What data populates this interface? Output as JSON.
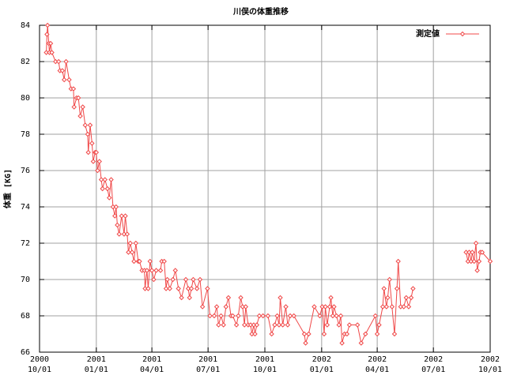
{
  "chart_data": {
    "type": "line",
    "title": "川俣の体重推移",
    "y_label": "体重 [KG]",
    "xlim": [
      "2000-10-01",
      "2002-10-01"
    ],
    "xticks": [
      {
        "value": "2000-10-01",
        "label": [
          "2000",
          "10/01"
        ]
      },
      {
        "value": "2001-01-01",
        "label": [
          "2001",
          "01/01"
        ]
      },
      {
        "value": "2001-04-01",
        "label": [
          "2001",
          "04/01"
        ]
      },
      {
        "value": "2001-07-01",
        "label": [
          "2001",
          "07/01"
        ]
      },
      {
        "value": "2001-10-01",
        "label": [
          "2001",
          "10/01"
        ]
      },
      {
        "value": "2002-01-01",
        "label": [
          "2002",
          "01/01"
        ]
      },
      {
        "value": "2002-04-01",
        "label": [
          "2002",
          "04/01"
        ]
      },
      {
        "value": "2002-07-01",
        "label": [
          "2002",
          "07/01"
        ]
      },
      {
        "value": "2002-10-01",
        "label": [
          "2002",
          "10/01"
        ]
      }
    ],
    "ylim": [
      66,
      84
    ],
    "yticks": [
      66,
      68,
      70,
      72,
      74,
      76,
      78,
      80,
      82,
      84
    ],
    "grid": true,
    "legend": "top-right",
    "x": [
      "2000-10-12",
      "2000-10-13",
      "2000-10-14",
      "2000-10-16",
      "2000-10-17",
      "2000-10-19",
      "2000-10-21",
      "2000-10-27",
      "2000-11-01",
      "2000-11-03",
      "2000-11-07",
      "2000-11-10",
      "2000-11-13",
      "2000-11-18",
      "2000-11-21",
      "2000-11-25",
      "2000-11-26",
      "2000-11-30",
      "2000-12-03",
      "2000-12-06",
      "2000-12-10",
      "2000-12-14",
      "2000-12-18",
      "2000-12-19",
      "2000-12-22",
      "2000-12-25",
      "2000-12-27",
      "2000-12-30",
      "2001-01-01",
      "2001-01-03",
      "2001-01-06",
      "2001-01-09",
      "2001-01-11",
      "2001-01-15",
      "2001-01-19",
      "2001-01-22",
      "2001-01-25",
      "2001-01-28",
      "2001-01-31",
      "2001-02-02",
      "2001-02-04",
      "2001-02-07",
      "2001-02-11",
      "2001-02-15",
      "2001-02-17",
      "2001-02-20",
      "2001-02-22",
      "2001-02-25",
      "2001-02-28",
      "2001-03-03",
      "2001-03-06",
      "2001-03-10",
      "2001-03-12",
      "2001-03-16",
      "2001-03-20",
      "2001-03-21",
      "2001-03-24",
      "2001-03-26",
      "2001-03-29",
      "2001-04-01",
      "2001-04-04",
      "2001-04-08",
      "2001-04-15",
      "2001-04-17",
      "2001-04-21",
      "2001-04-24",
      "2001-04-26",
      "2001-04-30",
      "2001-05-05",
      "2001-05-09",
      "2001-05-14",
      "2001-05-19",
      "2001-05-26",
      "2001-05-30",
      "2001-06-01",
      "2001-06-04",
      "2001-06-07",
      "2001-06-13",
      "2001-06-18",
      "2001-06-22",
      "2001-06-30",
      "2001-07-04",
      "2001-07-11",
      "2001-07-15",
      "2001-07-18",
      "2001-07-22",
      "2001-07-26",
      "2001-07-30",
      "2001-08-03",
      "2001-08-07",
      "2001-08-10",
      "2001-08-16",
      "2001-08-19",
      "2001-08-23",
      "2001-08-26",
      "2001-08-29",
      "2001-08-31",
      "2001-09-04",
      "2001-09-08",
      "2001-09-10",
      "2001-09-13",
      "2001-09-15",
      "2001-09-18",
      "2001-09-22",
      "2001-09-28",
      "2001-10-06",
      "2001-10-12",
      "2001-10-17",
      "2001-10-21",
      "2001-10-24",
      "2001-10-26",
      "2001-10-30",
      "2001-11-04",
      "2001-11-07",
      "2001-11-11",
      "2001-11-17",
      "2001-12-04",
      "2001-12-06",
      "2001-12-11",
      "2001-12-20",
      "2001-12-29",
      "2002-01-02",
      "2002-01-05",
      "2002-01-07",
      "2002-01-10",
      "2002-01-14",
      "2002-01-16",
      "2002-01-19",
      "2002-01-21",
      "2002-01-25",
      "2002-01-29",
      "2002-02-01",
      "2002-02-03",
      "2002-02-07",
      "2002-02-11",
      "2002-02-15",
      "2002-02-28",
      "2002-03-06",
      "2002-03-13",
      "2002-03-29",
      "2002-04-01",
      "2002-04-04",
      "2002-04-10",
      "2002-04-12",
      "2002-04-16",
      "2002-04-18",
      "2002-04-21",
      "2002-04-25",
      "2002-04-29",
      "2002-05-03",
      "2002-05-05",
      "2002-05-09",
      "2002-05-14",
      "2002-05-18",
      "2002-05-22",
      "2002-05-26",
      "2002-05-29",
      "2002-07-15",
      "2002-08-23",
      "2002-08-26",
      "2002-08-28",
      "2002-08-31",
      "2002-09-02",
      "2002-09-05",
      "2002-09-08",
      "2002-09-10",
      "2002-09-13",
      "2002-09-15",
      "2002-09-18",
      "2002-10-01"
    ],
    "series": [
      {
        "name": "測定値",
        "color": "#f04848",
        "values": [
          82.5,
          83.5,
          84,
          83,
          82.5,
          83,
          82.5,
          82,
          82,
          81.5,
          81.5,
          81,
          82,
          81,
          80.5,
          80.5,
          79.5,
          80,
          80,
          79,
          79.5,
          78.5,
          78,
          77,
          78.5,
          77.5,
          76.5,
          77,
          77,
          76,
          76.5,
          75.5,
          75,
          75.5,
          75,
          74.5,
          75.5,
          74,
          73.5,
          74,
          73,
          72.5,
          73.5,
          72.5,
          73.5,
          72.5,
          71.5,
          72,
          71.5,
          71,
          72,
          71,
          71,
          70.5,
          70.5,
          69.5,
          70.5,
          69.5,
          71,
          70.5,
          70,
          70.5,
          70.5,
          71,
          71,
          69.5,
          70,
          69.5,
          70,
          70.5,
          69.5,
          69,
          70,
          69.5,
          69,
          69.5,
          70,
          69.5,
          70,
          68.5,
          69.5,
          68,
          68,
          68.5,
          67.5,
          68,
          67.5,
          68.5,
          69,
          68,
          68,
          67.5,
          68,
          69,
          68.5,
          67.5,
          68.5,
          67.5,
          67.5,
          67,
          67.5,
          67,
          67.5,
          68,
          68,
          68,
          67,
          67.5,
          68,
          67.5,
          69,
          67.5,
          68.5,
          67.5,
          68,
          68,
          67,
          66.5,
          67,
          68.5,
          68,
          68.5,
          67,
          68.5,
          67.5,
          68.5,
          69,
          68,
          68.5,
          68,
          67.5,
          68,
          66.5,
          67,
          67,
          67.5,
          67.5,
          66.5,
          67,
          68,
          67,
          67.5,
          68.5,
          69.5,
          68.5,
          69,
          70,
          68.5,
          67,
          69.5,
          71,
          68.5,
          68.5,
          69,
          68.5,
          69,
          69.5,
          null,
          71.5,
          71,
          71.5,
          71,
          71.5,
          71,
          72,
          70.5,
          71,
          71.5,
          71.5,
          71
        ]
      }
    ]
  }
}
